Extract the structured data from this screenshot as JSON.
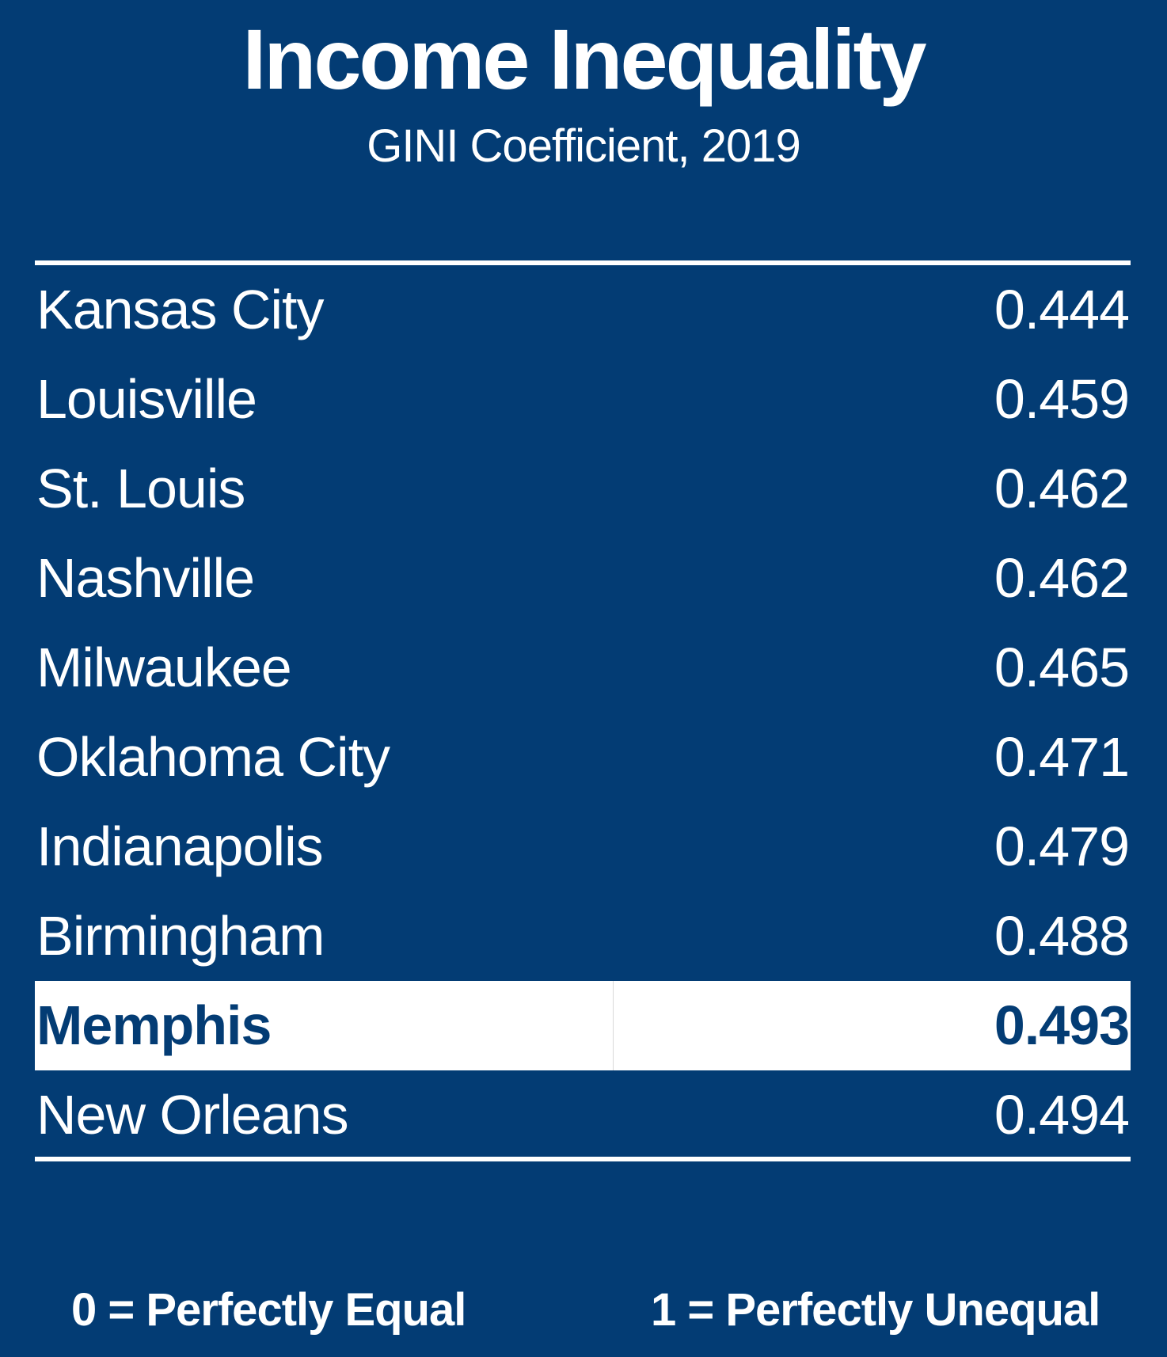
{
  "chart_data": {
    "type": "table",
    "title": "Income Inequality",
    "subtitle": "GINI Coefficient, 2019",
    "rows": [
      {
        "city": "Kansas City",
        "value": "0.444"
      },
      {
        "city": "Louisville",
        "value": "0.459"
      },
      {
        "city": "St. Louis",
        "value": "0.462"
      },
      {
        "city": "Nashville",
        "value": "0.462"
      },
      {
        "city": "Milwaukee",
        "value": "0.465"
      },
      {
        "city": "Oklahoma City",
        "value": "0.471"
      },
      {
        "city": "Indianapolis",
        "value": "0.479"
      },
      {
        "city": "Birmingham",
        "value": "0.488"
      },
      {
        "city": "Memphis",
        "value": "0.493",
        "highlight": true
      },
      {
        "city": "New Orleans",
        "value": "0.494"
      }
    ],
    "legend": {
      "left": "0 = Perfectly Equal",
      "right": "1 = Perfectly Unequal"
    }
  },
  "colors": {
    "background": "#033c74",
    "text": "#ffffff",
    "highlight_background": "#ffffff",
    "highlight_text": "#033c74"
  }
}
